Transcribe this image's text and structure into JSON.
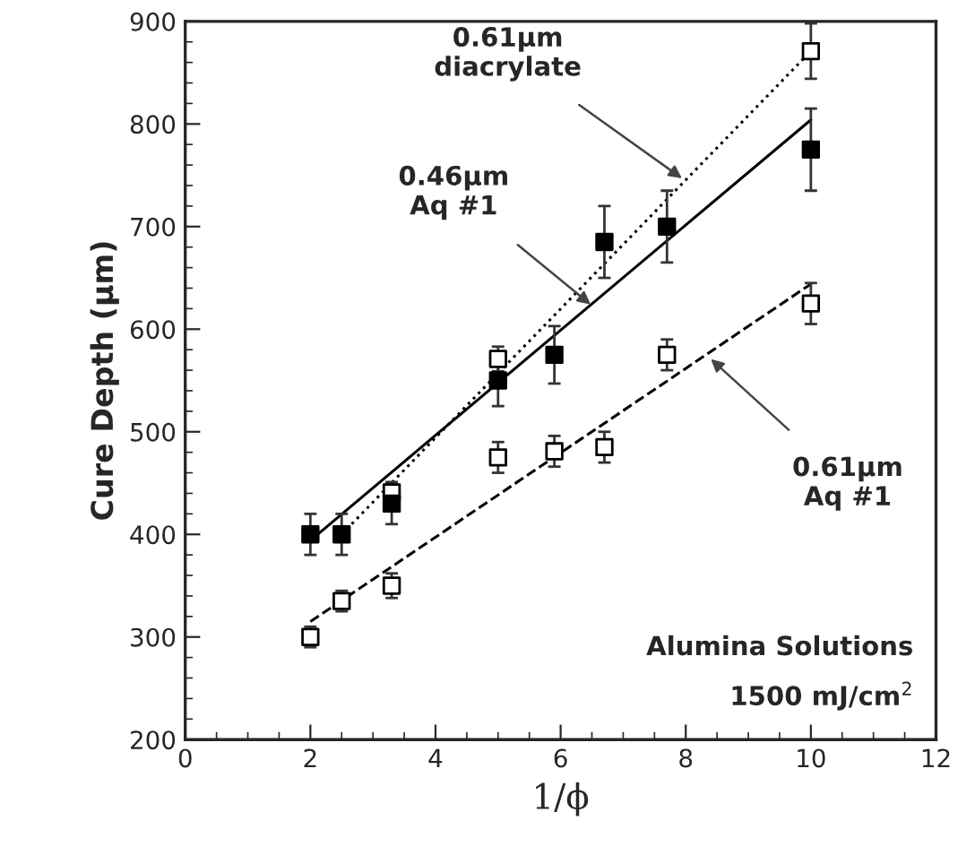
{
  "chart_data": {
    "type": "scatter",
    "xlabel": "1/ϕ",
    "ylabel": "Cure Depth (µm)",
    "xlim": [
      0,
      12
    ],
    "ylim": [
      200,
      900
    ],
    "xticks": [
      0,
      2,
      4,
      6,
      8,
      10,
      12
    ],
    "yticks": [
      200,
      300,
      400,
      500,
      600,
      700,
      800,
      900
    ],
    "grid": false,
    "legend": false,
    "marker": "square",
    "series": [
      {
        "type": "line",
        "marker": "none",
        "line_style": "dotted",
        "color": "#000000",
        "x": [
          2.5,
          10
        ],
        "values": [
          400,
          871
        ]
      },
      {
        "type": "line",
        "marker": "none",
        "line_style": "solid",
        "color": "#000000",
        "x": [
          2,
          10
        ],
        "values": [
          394,
          804
        ]
      },
      {
        "type": "line",
        "marker": "none",
        "line_style": "dashed",
        "color": "#000000",
        "x": [
          2,
          10
        ],
        "values": [
          315,
          644
        ]
      },
      {
        "color": "#ffffff",
        "x": [
          3.3,
          5,
          10
        ],
        "values": [
          441,
          571,
          871
        ],
        "errors": [
          10,
          12,
          27
        ]
      },
      {
        "color": "#000000",
        "x": [
          2,
          2.5,
          3.3,
          5,
          5.9,
          6.7,
          7.7,
          10
        ],
        "values": [
          400,
          400,
          430,
          550,
          575,
          685,
          700,
          775
        ],
        "errors": [
          20,
          20,
          20,
          25,
          28,
          35,
          35,
          40
        ]
      },
      {
        "color": "#ffffff",
        "x": [
          2,
          2.5,
          3.3,
          5,
          5.9,
          6.7,
          7.7,
          10
        ],
        "values": [
          300,
          335,
          350,
          475,
          481,
          485,
          575,
          625
        ],
        "errors": [
          10,
          10,
          12,
          15,
          15,
          15,
          15,
          20
        ]
      }
    ],
    "annotations": [
      {
        "text": "0.61µm\ndiacrylate",
        "x": 7.94,
        "y": 747
      },
      {
        "text": "0.46µm\nAq #1",
        "x": 6.48,
        "y": 624
      },
      {
        "text": "0.61µm\nAq #1",
        "x": 8.4,
        "y": 571
      },
      "Alumina Solutions",
      "1500 mJ/cm$^{2}$"
    ]
  }
}
